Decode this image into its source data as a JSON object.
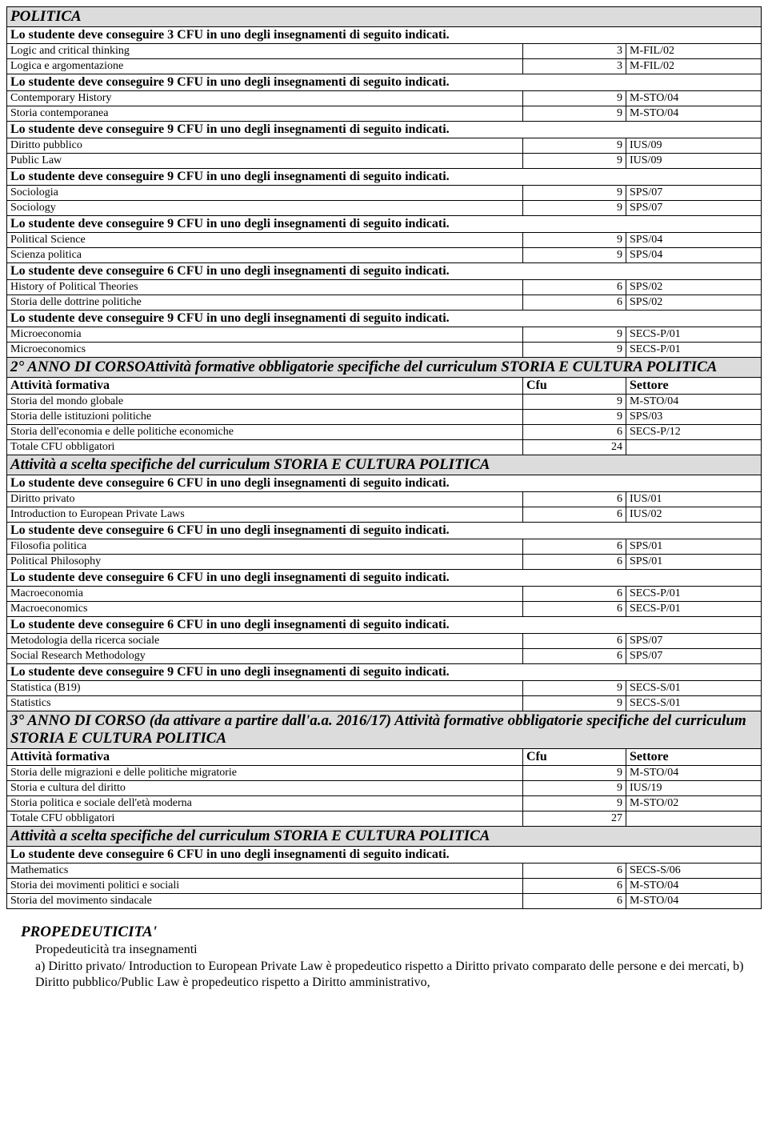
{
  "table": {
    "rows": [
      {
        "type": "header",
        "text": "POLITICA"
      },
      {
        "type": "rule",
        "text": "Lo studente deve conseguire 3 CFU in uno degli insegnamenti di seguito indicati."
      },
      {
        "type": "course",
        "name": "Logic and critical thinking",
        "cfu": "3",
        "sector": "M-FIL/02"
      },
      {
        "type": "course",
        "name": "Logica e argomentazione",
        "cfu": "3",
        "sector": "M-FIL/02"
      },
      {
        "type": "rule",
        "text": "Lo studente deve conseguire 9 CFU in uno degli insegnamenti di seguito indicati."
      },
      {
        "type": "course",
        "name": "Contemporary History",
        "cfu": "9",
        "sector": "M-STO/04"
      },
      {
        "type": "course",
        "name": "Storia contemporanea",
        "cfu": "9",
        "sector": "M-STO/04"
      },
      {
        "type": "rule",
        "text": "Lo studente deve conseguire 9 CFU in uno degli insegnamenti di seguito indicati."
      },
      {
        "type": "course",
        "name": "Diritto pubblico",
        "cfu": "9",
        "sector": "IUS/09"
      },
      {
        "type": "course",
        "name": "Public Law",
        "cfu": "9",
        "sector": "IUS/09"
      },
      {
        "type": "rule",
        "text": "Lo studente deve conseguire 9 CFU in uno degli insegnamenti di seguito indicati."
      },
      {
        "type": "course",
        "name": "Sociologia",
        "cfu": "9",
        "sector": "SPS/07"
      },
      {
        "type": "course",
        "name": "Sociology",
        "cfu": "9",
        "sector": "SPS/07"
      },
      {
        "type": "rule",
        "text": "Lo studente deve conseguire 9 CFU in uno degli insegnamenti di seguito indicati."
      },
      {
        "type": "course",
        "name": "Political Science",
        "cfu": "9",
        "sector": "SPS/04"
      },
      {
        "type": "course",
        "name": "Scienza politica",
        "cfu": "9",
        "sector": "SPS/04"
      },
      {
        "type": "rule",
        "text": "Lo studente deve conseguire 6 CFU in uno degli insegnamenti di seguito indicati."
      },
      {
        "type": "course",
        "name": "History of Political Theories",
        "cfu": "6",
        "sector": "SPS/02"
      },
      {
        "type": "course",
        "name": "Storia delle dottrine politiche",
        "cfu": "6",
        "sector": "SPS/02"
      },
      {
        "type": "rule",
        "text": "Lo studente deve conseguire 9 CFU in uno degli insegnamenti di seguito indicati."
      },
      {
        "type": "course",
        "name": "Microeconomia",
        "cfu": "9",
        "sector": "SECS-P/01"
      },
      {
        "type": "course",
        "name": "Microeconomics",
        "cfu": "9",
        "sector": "SECS-P/01"
      },
      {
        "type": "section",
        "text": "2° ANNO DI CORSOAttività formative obbligatorie  specifiche del curriculum STORIA E CULTURA POLITICA"
      },
      {
        "type": "colheader",
        "c1": "Attività formativa",
        "c2": "Cfu",
        "c3": "Settore"
      },
      {
        "type": "course",
        "name": "Storia del mondo globale",
        "cfu": "9",
        "sector": "M-STO/04"
      },
      {
        "type": "course",
        "name": "Storia delle istituzioni politiche",
        "cfu": "9",
        "sector": "SPS/03"
      },
      {
        "type": "course",
        "name": "Storia dell'economia e delle politiche economiche",
        "cfu": "6",
        "sector": "SECS-P/12"
      },
      {
        "type": "total",
        "label": "Totale CFU obbligatori",
        "cfu": "24"
      },
      {
        "type": "section",
        "text": "Attività a scelta  specifiche del curriculum STORIA E CULTURA POLITICA"
      },
      {
        "type": "rule",
        "text": "Lo studente deve conseguire 6 CFU in uno degli insegnamenti di seguito indicati."
      },
      {
        "type": "course",
        "name": "Diritto privato",
        "cfu": "6",
        "sector": "IUS/01"
      },
      {
        "type": "course",
        "name": "Introduction to European Private Laws",
        "cfu": "6",
        "sector": "IUS/02"
      },
      {
        "type": "rule",
        "text": "Lo studente deve conseguire 6 CFU in uno degli insegnamenti di seguito indicati."
      },
      {
        "type": "course",
        "name": "Filosofia politica",
        "cfu": "6",
        "sector": "SPS/01"
      },
      {
        "type": "course",
        "name": "Political Philosophy",
        "cfu": "6",
        "sector": "SPS/01"
      },
      {
        "type": "rule",
        "text": "Lo studente deve conseguire 6 CFU in uno degli insegnamenti di seguito indicati."
      },
      {
        "type": "course",
        "name": "Macroeconomia",
        "cfu": "6",
        "sector": "SECS-P/01"
      },
      {
        "type": "course",
        "name": "Macroeconomics",
        "cfu": "6",
        "sector": "SECS-P/01"
      },
      {
        "type": "rule",
        "text": "Lo studente deve conseguire 6 CFU in uno degli insegnamenti di seguito indicati."
      },
      {
        "type": "course",
        "name": "Metodologia della ricerca sociale",
        "cfu": "6",
        "sector": "SPS/07"
      },
      {
        "type": "course",
        "name": "Social Research Methodology",
        "cfu": "6",
        "sector": "SPS/07"
      },
      {
        "type": "rule",
        "text": "Lo studente deve conseguire 9 CFU in uno degli insegnamenti di seguito indicati."
      },
      {
        "type": "course",
        "name": "Statistica (B19)",
        "cfu": "9",
        "sector": "SECS-S/01"
      },
      {
        "type": "course",
        "name": "Statistics",
        "cfu": "9",
        "sector": "SECS-S/01"
      },
      {
        "type": "section",
        "text": "3° ANNO DI CORSO (da attivare a partire dall'a.a. 2016/17) Attività formative obbligatorie  specifiche del curriculum STORIA E CULTURA POLITICA"
      },
      {
        "type": "colheader",
        "c1": "Attività formativa",
        "c2": "Cfu",
        "c3": "Settore"
      },
      {
        "type": "course",
        "name": "Storia delle migrazioni e delle politiche migratorie",
        "cfu": "9",
        "sector": "M-STO/04"
      },
      {
        "type": "course",
        "name": "Storia e cultura del diritto",
        "cfu": "9",
        "sector": "IUS/19"
      },
      {
        "type": "course",
        "name": "Storia politica e sociale dell'età moderna",
        "cfu": "9",
        "sector": "M-STO/02"
      },
      {
        "type": "total",
        "label": "Totale CFU obbligatori",
        "cfu": "27"
      },
      {
        "type": "section",
        "text": "Attività a scelta  specifiche del curriculum STORIA E CULTURA POLITICA"
      },
      {
        "type": "rule",
        "text": "Lo studente deve conseguire 6 CFU in uno degli insegnamenti di seguito indicati."
      },
      {
        "type": "course",
        "name": "Mathematics",
        "cfu": "6",
        "sector": "SECS-S/06"
      },
      {
        "type": "course",
        "name": "Storia dei movimenti politici e sociali",
        "cfu": "6",
        "sector": "M-STO/04"
      },
      {
        "type": "course",
        "name": "Storia del movimento sindacale",
        "cfu": "6",
        "sector": "M-STO/04"
      }
    ]
  },
  "footer": {
    "title": "PROPEDEUTICITA'",
    "subtitle": "Propedeuticità tra insegnamenti",
    "body": "a) Diritto privato/ Introduction to European Private Law è propedeutico rispetto a Diritto privato comparato delle persone e dei mercati, b) Diritto pubblico/Public Law è propedeutico rispetto a Diritto amministrativo,"
  }
}
